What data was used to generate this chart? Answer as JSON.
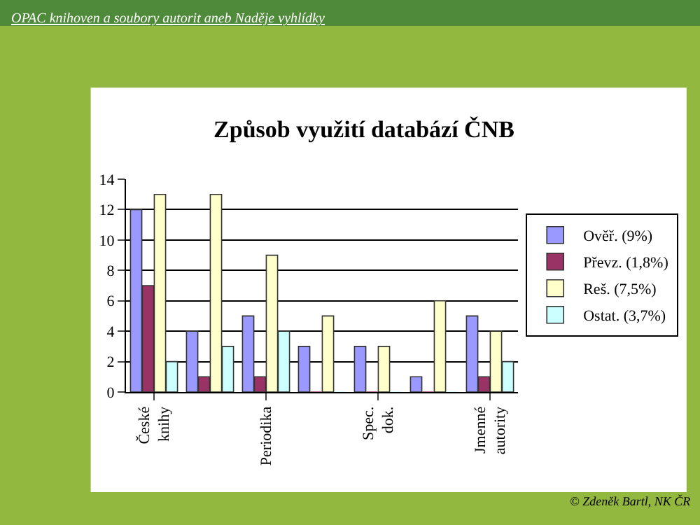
{
  "chart_data": {
    "type": "bar",
    "title": "Způsob využití databází ČNB",
    "categories": [
      "České knihy",
      null,
      "Periodika",
      null,
      "Spec. dok.",
      null,
      "Jmenné autority"
    ],
    "series": [
      {
        "name": "Ověř. (9%)",
        "color": "#9999ff",
        "values": [
          12,
          4,
          5,
          3,
          3,
          1,
          5
        ]
      },
      {
        "name": "Převz. (1,8%)",
        "color": "#993366",
        "values": [
          7,
          1,
          1,
          0,
          0,
          0,
          1
        ]
      },
      {
        "name": "Reš. (7,5%)",
        "color": "#ffffcc",
        "values": [
          13,
          13,
          9,
          5,
          3,
          6,
          4
        ]
      },
      {
        "name": "Ostat. (3,7%)",
        "color": "#ccffff",
        "values": [
          2,
          3,
          4,
          0,
          0,
          0,
          2
        ]
      }
    ],
    "ylim": [
      0,
      14
    ],
    "yticks": [
      0,
      2,
      4,
      6,
      8,
      10,
      12,
      14
    ],
    "grid": "y",
    "legend": "right",
    "annotations": [
      "OPAC knihoven a soubory autorit aneb Naděje vyhlídky",
      "© Zdeněk Bartl, NK ČR"
    ]
  }
}
